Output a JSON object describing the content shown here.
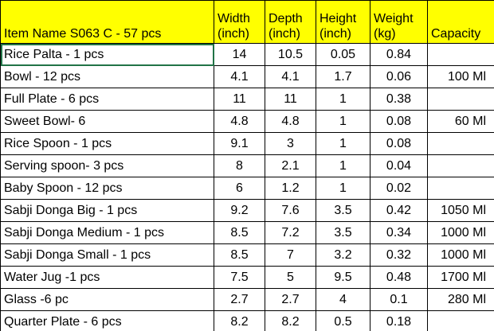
{
  "table": {
    "header": [
      "Item Name S063 C - 57 pcs",
      "Width (inch)",
      "Depth (inch)",
      "Height (inch)",
      "Weight (kg)",
      "Capacity"
    ],
    "rows": [
      [
        "Rice Palta - 1 pcs",
        "14",
        "10.5",
        "0.05",
        "0.84",
        null
      ],
      [
        "Bowl - 12 pcs",
        "4.1",
        "4.1",
        "1.7",
        "0.06",
        "100 Ml"
      ],
      [
        "Full Plate - 6 pcs",
        "11",
        "11",
        "1",
        "0.38",
        null
      ],
      [
        "Sweet Bowl- 6",
        "4.8",
        "4.8",
        "1",
        "0.08",
        "60 Ml"
      ],
      [
        "Rice Spoon - 1 pcs",
        "9.1",
        "3",
        "1",
        "0.08",
        null
      ],
      [
        "Serving spoon- 3 pcs",
        "8",
        "2.1",
        "1",
        "0.04",
        null
      ],
      [
        "Baby Spoon - 12 pcs",
        "6",
        "1.2",
        "1",
        "0.02",
        null
      ],
      [
        "Sabji Donga Big - 1 pcs",
        "9.2",
        "7.6",
        "3.5",
        "0.42",
        "1050 Ml"
      ],
      [
        "Sabji Donga Medium - 1 pcs",
        "8.5",
        "7.2",
        "3.5",
        "0.34",
        "1000 Ml"
      ],
      [
        "Sabji Donga Small - 1 pcs",
        "8.5",
        "7",
        "3.2",
        "0.32",
        "1000 Ml"
      ],
      [
        "Water Jug -1 pcs",
        "7.5",
        "5",
        "9.5",
        "0.48",
        "1700 Ml"
      ],
      [
        "Glass -6 pc",
        "2.7",
        "2.7",
        "4",
        "0.1",
        "280 Ml"
      ],
      [
        "Quarter Plate - 6 pcs",
        "8.2",
        "8.2",
        "0.5",
        "0.18",
        null
      ]
    ]
  }
}
